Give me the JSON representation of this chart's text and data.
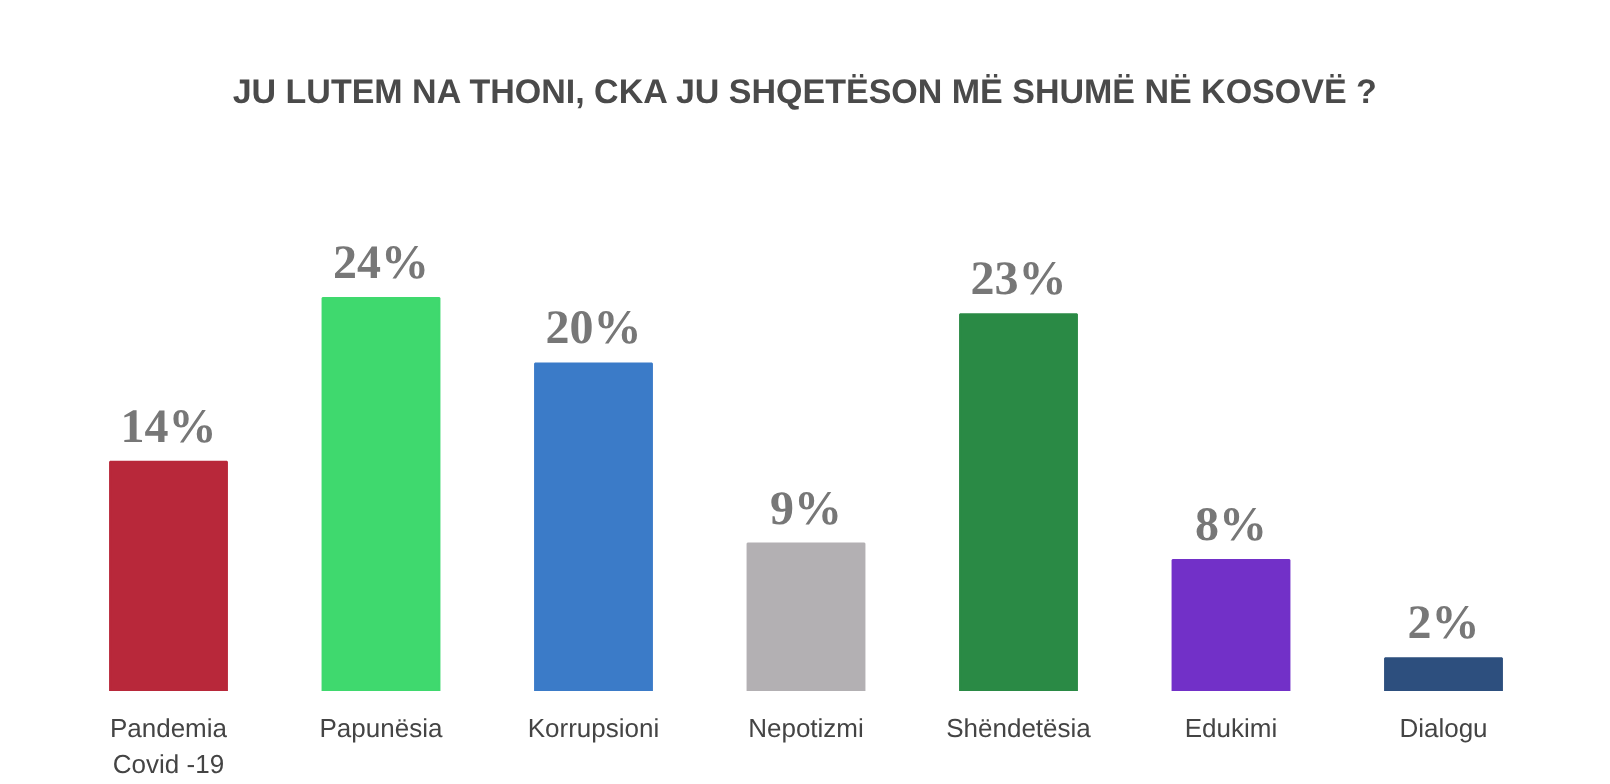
{
  "chart_data": {
    "type": "bar",
    "title": "JU LUTEM NA THONI, CKA JU SHQETËSON MË SHUMË NË KOSOVË ?",
    "categories": [
      "Pandemia\nCovid -19",
      "Papunësia",
      "Korrupsioni",
      "Nepotizmi",
      "Shëndetësia",
      "Edukimi",
      "Dialogu"
    ],
    "values": [
      14,
      24,
      20,
      9,
      23,
      8,
      2
    ],
    "colors": [
      "#b8283a",
      "#3fd96e",
      "#3b7bc8",
      "#b3b0b3",
      "#2a8a45",
      "#7230c8",
      "#2d4f7e"
    ],
    "value_labels": [
      "14%",
      "24%",
      "20%",
      "9%",
      "23%",
      "8%",
      "2%"
    ]
  }
}
